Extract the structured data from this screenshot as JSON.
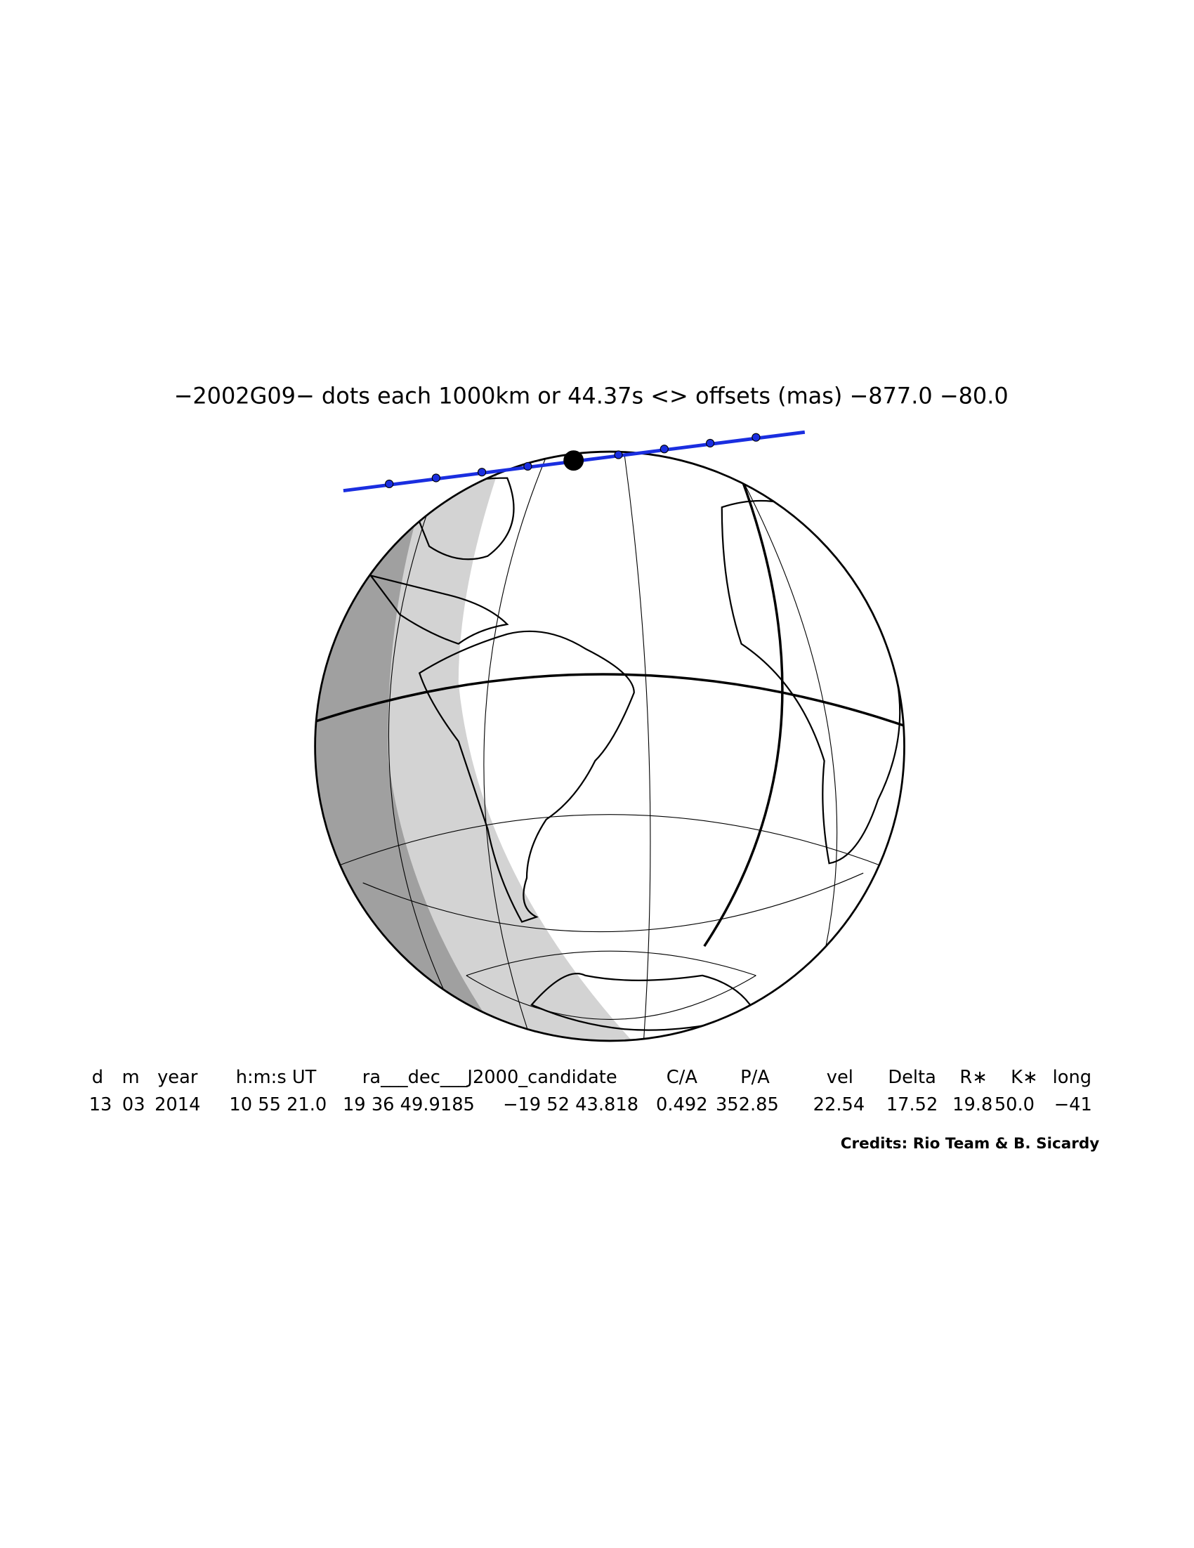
{
  "title": "−2002G09− dots each 1000km or 44.37s <> offsets (mas) −877.0  −80.0",
  "table": {
    "headers": [
      "d",
      "m",
      "year",
      "h:m:s UT",
      "ra___dec___J2000_candidate",
      "C/A",
      "P/A",
      "vel",
      "Delta",
      "R∗",
      "K∗",
      "long"
    ],
    "rows": [
      [
        "13",
        "03",
        "2014",
        "10 55 21.0",
        "19 36 49.9185",
        "−19 52 43.818",
        "0.492",
        "352.85",
        "22.54",
        "17.52",
        "19.8",
        "50.0",
        "−41"
      ]
    ]
  },
  "credits": "Credits: Rio Team & B. Sicardy"
}
